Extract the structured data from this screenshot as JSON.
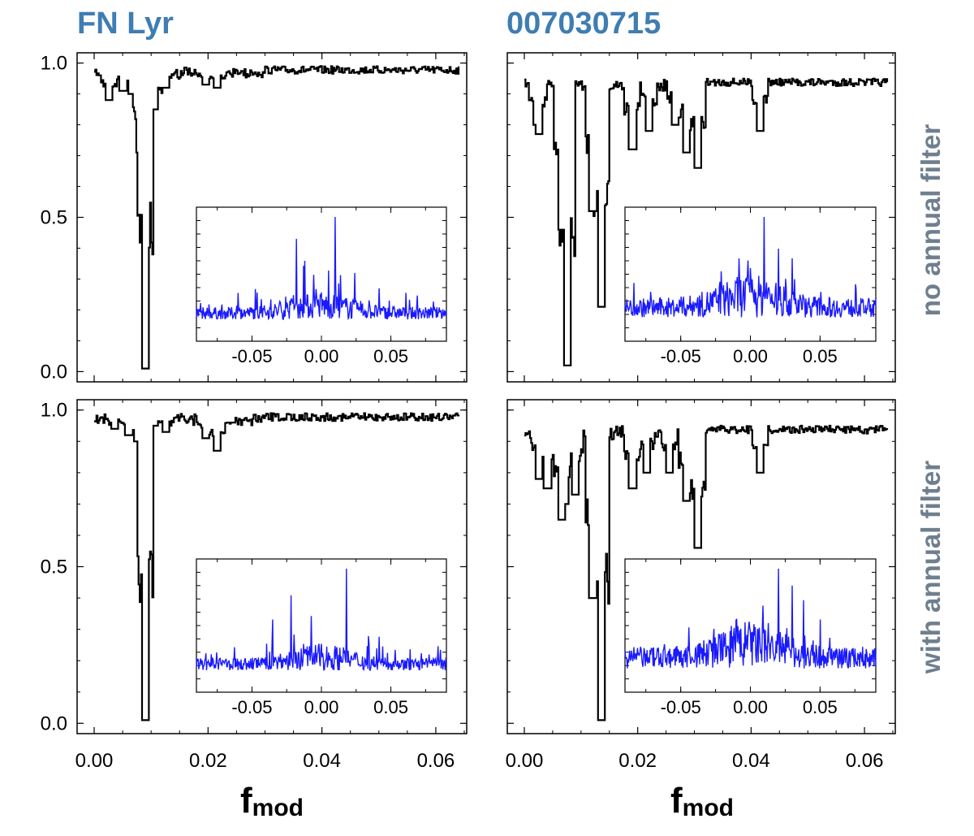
{
  "colors": {
    "title": "#3f7db3",
    "row_label": "#6f7f8f",
    "main_line": "#000000",
    "inset_line": "#1a1aff",
    "axis": "#000000"
  },
  "figure": {
    "column_titles": [
      "FN Lyr",
      "007030715"
    ],
    "row_labels": [
      "no annual filter",
      "with annual filter"
    ],
    "xlabel_main": "f",
    "xlabel_sub": "mod"
  },
  "chart_data": [
    {
      "type": "line",
      "panel": "FN Lyr / no annual filter",
      "xlim": [
        -0.002,
        0.065
      ],
      "ylim": [
        -0.02,
        1.02
      ],
      "xticks": [
        "0.00",
        "0.02",
        "0.04",
        "0.06"
      ],
      "yticks": [
        "0.0",
        "0.5",
        "1.0"
      ],
      "baseline": 0.99,
      "dips": [
        [
          0.0025,
          0.12
        ],
        [
          0.005,
          0.09
        ],
        [
          0.0065,
          0.1
        ],
        [
          0.008,
          0.29
        ],
        [
          0.009,
          0.99
        ],
        [
          0.0105,
          0.15
        ],
        [
          0.0125,
          0.08
        ],
        [
          0.0195,
          0.07
        ],
        [
          0.0215,
          0.08
        ],
        [
          0.0285,
          0.03
        ]
      ],
      "inset": {
        "xlim": [
          -0.09,
          0.09
        ],
        "xticks": [
          "-0.05",
          "0.00",
          "0.05"
        ],
        "base": 0.12,
        "noise": 0.05,
        "peaks": [
          [
            -0.018,
            0.42
          ],
          [
            -0.012,
            0.33
          ],
          [
            0.005,
            0.29
          ],
          [
            0.01,
            0.51
          ],
          [
            0.024,
            0.28
          ],
          [
            0.0,
            0.2
          ]
        ]
      }
    },
    {
      "type": "line",
      "panel": "007030715 / no annual filter",
      "xlim": [
        -0.002,
        0.065
      ],
      "ylim": [
        -0.02,
        1.02
      ],
      "xticks": [
        "0.00",
        "0.02",
        "0.04",
        "0.06"
      ],
      "yticks": [
        "0.0",
        "0.5",
        "1.0"
      ],
      "baseline": 0.95,
      "dips": [
        [
          0.002,
          0.2
        ],
        [
          0.0025,
          0.23
        ],
        [
          0.0065,
          0.54
        ],
        [
          0.0075,
          0.98
        ],
        [
          0.012,
          0.48
        ],
        [
          0.0135,
          0.79
        ],
        [
          0.019,
          0.28
        ],
        [
          0.022,
          0.22
        ],
        [
          0.0265,
          0.2
        ],
        [
          0.0285,
          0.29
        ],
        [
          0.0305,
          0.34
        ],
        [
          0.0415,
          0.22
        ]
      ],
      "inset": {
        "xlim": [
          -0.09,
          0.09
        ],
        "xticks": [
          "-0.05",
          "0.00",
          "0.05"
        ],
        "base": 0.13,
        "noise": 0.08,
        "peaks": [
          [
            -0.008,
            0.34
          ],
          [
            0.0,
            0.3
          ],
          [
            0.01,
            0.51
          ],
          [
            0.02,
            0.38
          ],
          [
            0.03,
            0.34
          ]
        ]
      }
    },
    {
      "type": "line",
      "panel": "FN Lyr / with annual filter",
      "xlim": [
        -0.002,
        0.065
      ],
      "ylim": [
        -0.02,
        1.02
      ],
      "xticks": [
        "0.00",
        "0.02",
        "0.04",
        "0.06"
      ],
      "yticks": [
        "0.0",
        "0.5",
        "1.0"
      ],
      "baseline": 0.99,
      "dips": [
        [
          0.0035,
          0.06
        ],
        [
          0.006,
          0.08
        ],
        [
          0.0075,
          0.1
        ],
        [
          0.009,
          0.99
        ],
        [
          0.0105,
          0.05
        ],
        [
          0.0125,
          0.07
        ],
        [
          0.0195,
          0.09
        ],
        [
          0.0215,
          0.13
        ],
        [
          0.024,
          0.04
        ]
      ],
      "inset": {
        "xlim": [
          -0.09,
          0.09
        ],
        "xticks": [
          "-0.05",
          "0.00",
          "0.05"
        ],
        "base": 0.12,
        "noise": 0.05,
        "peaks": [
          [
            -0.035,
            0.3
          ],
          [
            -0.022,
            0.4
          ],
          [
            0.018,
            0.51
          ],
          [
            0.0,
            0.2
          ]
        ]
      }
    },
    {
      "type": "line",
      "panel": "007030715 / with annual filter",
      "xlim": [
        -0.002,
        0.065
      ],
      "ylim": [
        -0.02,
        1.02
      ],
      "xticks": [
        "0.00",
        "0.02",
        "0.04",
        "0.06"
      ],
      "yticks": [
        "0.0",
        "0.5",
        "1.0"
      ],
      "baseline": 0.95,
      "dips": [
        [
          0.0025,
          0.22
        ],
        [
          0.004,
          0.25
        ],
        [
          0.0065,
          0.35
        ],
        [
          0.007,
          0.3
        ],
        [
          0.009,
          0.27
        ],
        [
          0.012,
          0.6
        ],
        [
          0.0135,
          0.99
        ],
        [
          0.019,
          0.25
        ],
        [
          0.0215,
          0.2
        ],
        [
          0.0255,
          0.2
        ],
        [
          0.0285,
          0.29
        ],
        [
          0.0305,
          0.44
        ],
        [
          0.0415,
          0.2
        ]
      ],
      "inset": {
        "xlim": [
          -0.09,
          0.09
        ],
        "xticks": [
          "-0.05",
          "0.00",
          "0.05"
        ],
        "base": 0.13,
        "noise": 0.09,
        "peaks": [
          [
            -0.01,
            0.3
          ],
          [
            0.0,
            0.25
          ],
          [
            0.02,
            0.51
          ],
          [
            0.03,
            0.44
          ],
          [
            0.038,
            0.38
          ],
          [
            0.05,
            0.3
          ]
        ]
      }
    }
  ]
}
